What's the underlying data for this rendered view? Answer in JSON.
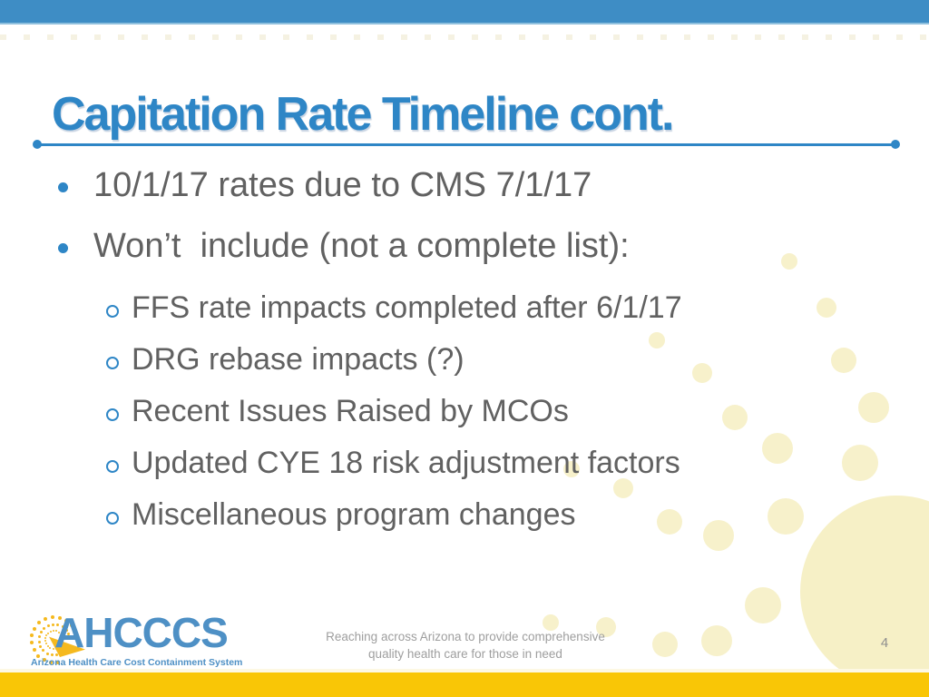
{
  "slide": {
    "title": "Capitation Rate Timeline cont.",
    "bullets": [
      {
        "level": 1,
        "text": "10/1/17 rates due to CMS 7/1/17"
      },
      {
        "level": 1,
        "text": "Won’t  include (not a complete list):"
      },
      {
        "level": 2,
        "text": "FFS rate impacts completed after 6/1/17"
      },
      {
        "level": 2,
        "text": "DRG rebase impacts (?)"
      },
      {
        "level": 2,
        "text": "Recent Issues Raised by MCOs"
      },
      {
        "level": 2,
        "text": "Updated CYE 18 risk adjustment factors"
      },
      {
        "level": 2,
        "text": "Miscellaneous program changes"
      }
    ],
    "footer": {
      "logo_text": "AHCCCS",
      "logo_tagline": "Arizona Health Care Cost Containment System",
      "center_line1": "Reaching across Arizona to provide comprehensive",
      "center_line2": "quality health care for those in need",
      "page_number": "4"
    },
    "colors": {
      "top_bar": "#3E8DC5",
      "title": "#2E86C6",
      "body_text": "#616161",
      "bullet": "#2E86C6",
      "bottom_bar": "#F9C606",
      "decoration_dots": "#F7F1CB",
      "decoration_circle": "#F6F0C6",
      "logo_blue": "#4E90C5",
      "logo_gold": "#F5B91E",
      "footer_text": "#9E9E9E"
    }
  }
}
